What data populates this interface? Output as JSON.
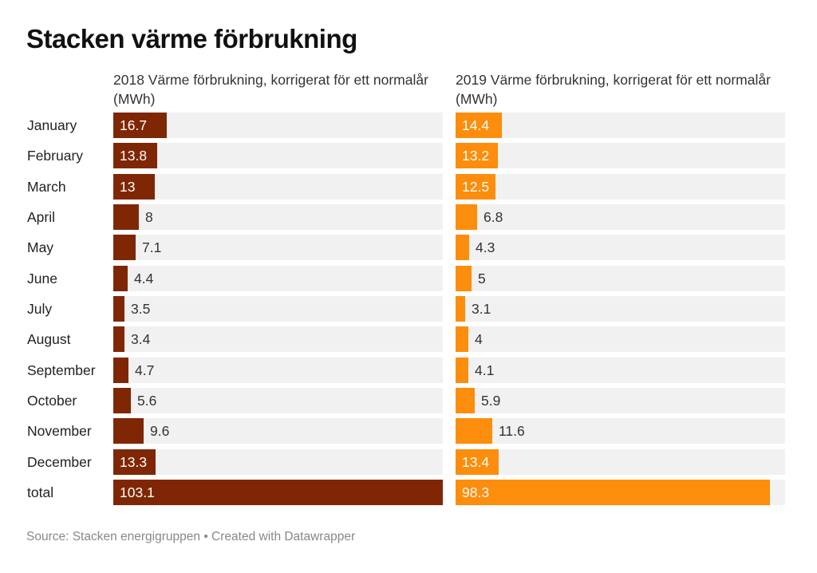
{
  "title": "Stacken värme förbrukning",
  "source_text": "Source: Stacken energigruppen • Created with Datawrapper",
  "colors": {
    "series_2018": "#7f2704",
    "series_2019": "#fd8d0c",
    "track": "#f1f1f1"
  },
  "chart_data": {
    "type": "bar",
    "orientation": "horizontal",
    "title": "Stacken värme förbrukning",
    "categories": [
      "January",
      "February",
      "March",
      "April",
      "May",
      "June",
      "July",
      "August",
      "September",
      "October",
      "November",
      "December",
      "total"
    ],
    "series": [
      {
        "name": "2018 Värme förbrukning, korrigerat för ett normalår (MWh)",
        "values": [
          16.7,
          13.8,
          13,
          8,
          7.1,
          4.4,
          3.5,
          3.4,
          4.7,
          5.6,
          9.6,
          13.3,
          103.1
        ]
      },
      {
        "name": "2019 Värme förbrukning, korrigerat för ett normalår (MWh)",
        "values": [
          14.4,
          13.2,
          12.5,
          6.8,
          4.3,
          5,
          3.1,
          4,
          4.1,
          5.9,
          11.6,
          13.4,
          98.3
        ]
      }
    ],
    "xlim": [
      0,
      103.1
    ],
    "grid": false,
    "legend": "none"
  }
}
